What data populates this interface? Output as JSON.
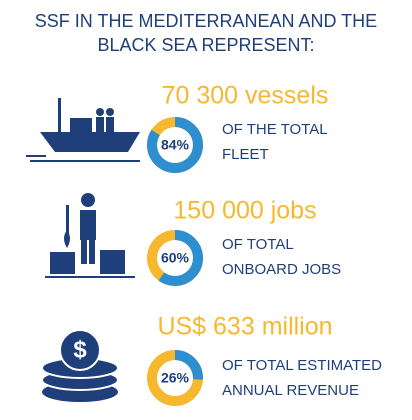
{
  "title": [
    "SSF IN THE MEDITERRANEAN AND THE",
    "BLACK SEA REPRESENT:"
  ],
  "items": [
    {
      "headline": "70 300 vessels",
      "percent": 84,
      "percent_label": "84%",
      "label": [
        "OF THE TOTAL",
        "FLEET"
      ]
    },
    {
      "headline": "150 000 jobs",
      "percent": 60,
      "percent_label": "60%",
      "label": [
        "OF TOTAL",
        "ONBOARD JOBS"
      ]
    },
    {
      "headline": "US$ 633 million",
      "percent": 26,
      "percent_label": "26%",
      "label": [
        "OF TOTAL ESTIMATED",
        "ANNUAL REVENUE"
      ]
    }
  ]
}
